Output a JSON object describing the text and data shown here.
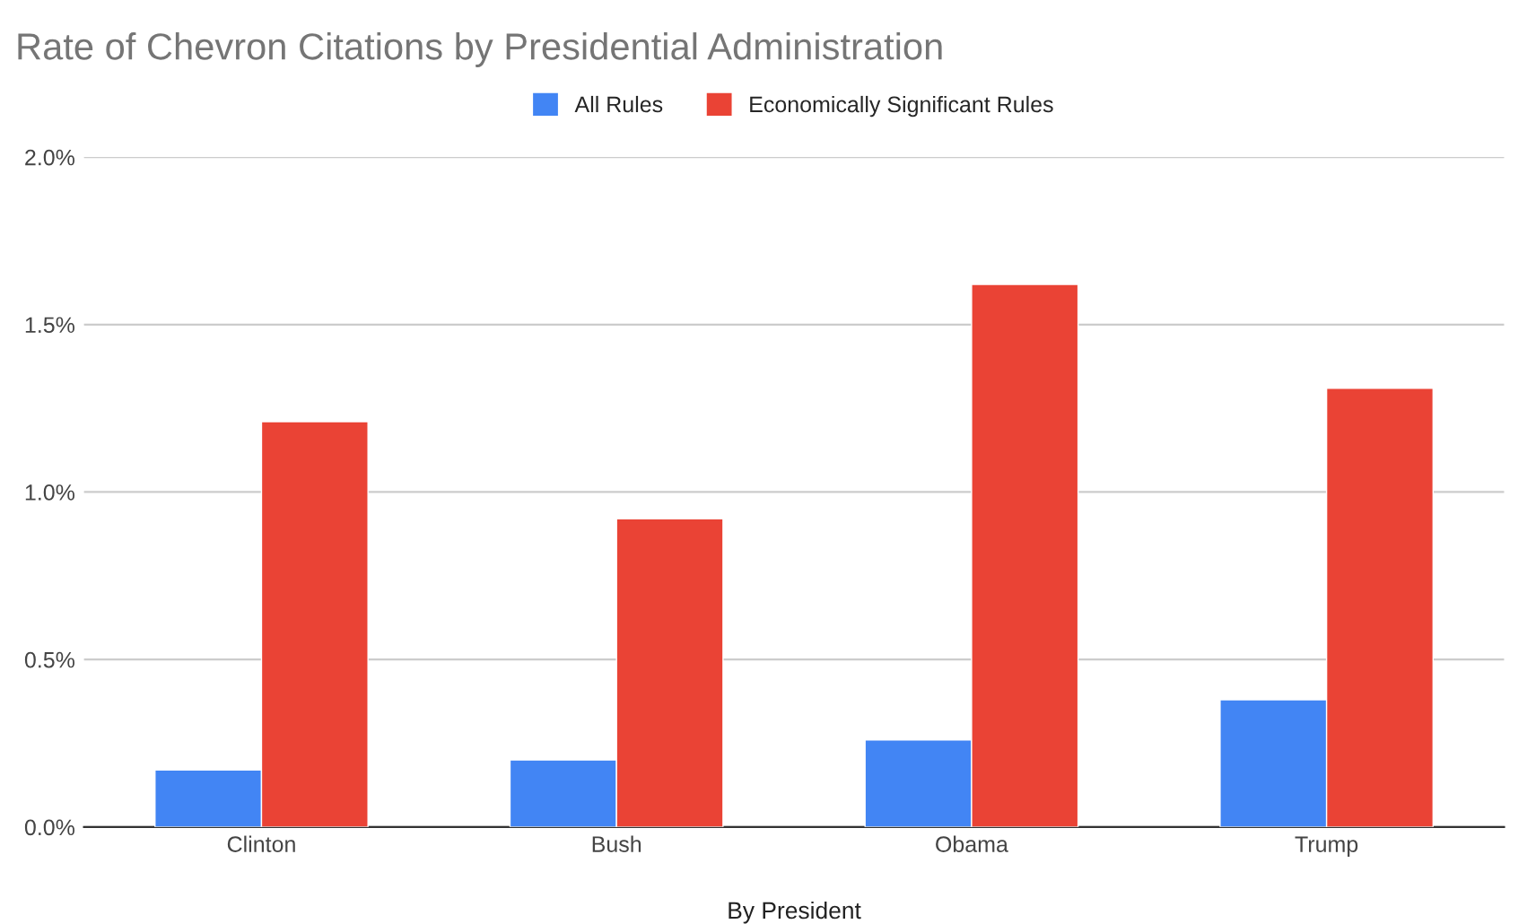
{
  "chart_data": {
    "type": "bar",
    "title": "Rate of Chevron Citations by Presidential Administration",
    "xlabel": "By President",
    "categories": [
      "Clinton",
      "Bush",
      "Obama",
      "Trump"
    ],
    "series": [
      {
        "name": "All Rules",
        "color": "#4285f4",
        "values": [
          0.17,
          0.2,
          0.26,
          0.38
        ]
      },
      {
        "name": "Economically Significant Rules",
        "color": "#ea4335",
        "values": [
          1.21,
          0.92,
          1.62,
          1.31
        ]
      }
    ],
    "ylim": [
      0,
      2
    ],
    "yticks": [
      {
        "value": 0,
        "label": "0.0%"
      },
      {
        "value": 0.5,
        "label": "0.5%"
      },
      {
        "value": 1,
        "label": "1.0%"
      },
      {
        "value": 1.5,
        "label": "1.5%"
      },
      {
        "value": 2,
        "label": "2.0%"
      }
    ],
    "grid": "y",
    "legend": "top"
  }
}
